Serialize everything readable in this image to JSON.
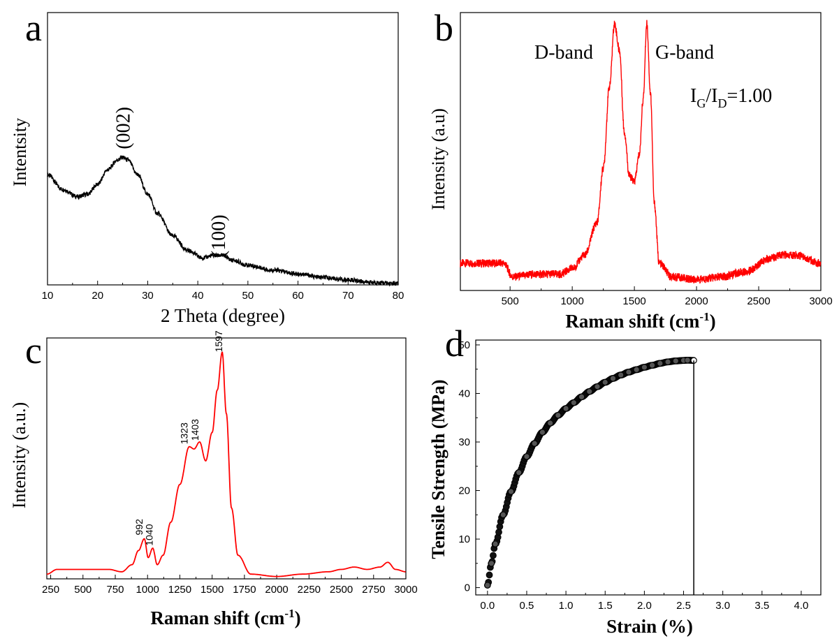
{
  "chart_data": [
    {
      "panel": "a",
      "type": "line",
      "xlabel": "2 Theta (degree)",
      "ylabel": "Intentsity",
      "xlim": [
        10,
        80
      ],
      "ylim": [
        0,
        1
      ],
      "xticks": [
        10,
        20,
        30,
        40,
        50,
        60,
        70,
        80
      ],
      "yticks_shown": false,
      "color": "#000000",
      "annotations": [
        {
          "text": "(002)",
          "x": 25,
          "y": 0.64
        },
        {
          "text": "(100)",
          "x": 44,
          "y": 0.2
        }
      ],
      "series": [
        {
          "x": [
            10,
            13,
            16,
            18,
            20,
            22,
            24,
            25,
            26,
            28,
            30,
            32,
            35,
            38,
            41,
            43,
            45,
            47,
            50,
            55,
            60,
            65,
            70,
            75,
            80
          ],
          "values": [
            0.45,
            0.39,
            0.36,
            0.37,
            0.41,
            0.47,
            0.51,
            0.52,
            0.51,
            0.45,
            0.37,
            0.29,
            0.2,
            0.14,
            0.11,
            0.12,
            0.12,
            0.1,
            0.08,
            0.06,
            0.045,
            0.03,
            0.02,
            0.01,
            0.005
          ]
        }
      ]
    },
    {
      "panel": "b",
      "type": "line",
      "xlabel": "Raman shift (cm",
      "xlabel_sup": "-1",
      "xlabel_end": ")",
      "ylabel": "Intensity (a.u)",
      "xlim": [
        100,
        3000
      ],
      "ylim": [
        0,
        1
      ],
      "xticks": [
        500,
        1000,
        1500,
        2000,
        2500,
        3000
      ],
      "yticks_shown": false,
      "color": "#ff0000",
      "annotations": [
        {
          "text": "D-band",
          "x": 1180,
          "y": 0.97
        },
        {
          "text": "G-band",
          "x": 1740,
          "y": 0.97
        }
      ],
      "ratio_label": {
        "main1": "I",
        "sub1": "G",
        "sep": "/I",
        "sub2": "D",
        "value": "=1.00"
      },
      "series": [
        {
          "x": [
            100,
            300,
            450,
            520,
            700,
            900,
            1000,
            1100,
            1200,
            1250,
            1300,
            1340,
            1380,
            1420,
            1460,
            1500,
            1540,
            1570,
            1600,
            1630,
            1660,
            1700,
            1800,
            2000,
            2200,
            2400,
            2600,
            2700,
            2800,
            3000
          ],
          "values": [
            0.1,
            0.1,
            0.1,
            0.05,
            0.06,
            0.06,
            0.08,
            0.13,
            0.25,
            0.45,
            0.75,
            0.98,
            0.88,
            0.58,
            0.42,
            0.4,
            0.5,
            0.7,
            0.98,
            0.72,
            0.32,
            0.1,
            0.05,
            0.04,
            0.05,
            0.07,
            0.12,
            0.13,
            0.13,
            0.1
          ]
        }
      ]
    },
    {
      "panel": "c",
      "type": "line",
      "xlabel": "Raman shift (cm",
      "xlabel_sup": "-1",
      "xlabel_end": ")",
      "ylabel": "Intensity (a.u.)",
      "xlim": [
        220,
        3000
      ],
      "ylim": [
        0,
        1
      ],
      "xticks": [
        250,
        500,
        750,
        1000,
        1250,
        1500,
        1750,
        2000,
        2250,
        2500,
        2750,
        3000
      ],
      "yticks_shown": false,
      "color": "#ff0000",
      "peak_labels": [
        {
          "text": "992",
          "x": 960,
          "y": 0.185
        },
        {
          "text": "1040",
          "x": 1040,
          "y": 0.14
        },
        {
          "text": "1323",
          "x": 1310,
          "y": 0.57
        },
        {
          "text": "1403",
          "x": 1395,
          "y": 0.585
        },
        {
          "text": "1597",
          "x": 1578,
          "y": 0.96
        }
      ],
      "series": [
        {
          "x": [
            220,
            300,
            400,
            500,
            600,
            700,
            800,
            880,
            930,
            975,
            1005,
            1040,
            1075,
            1120,
            1180,
            1250,
            1323,
            1360,
            1403,
            1450,
            1500,
            1540,
            1578,
            1610,
            1650,
            1700,
            1800,
            2000,
            2200,
            2400,
            2500,
            2600,
            2700,
            2800,
            2860,
            2920,
            3000
          ],
          "values": [
            0.02,
            0.04,
            0.04,
            0.04,
            0.04,
            0.04,
            0.03,
            0.06,
            0.12,
            0.17,
            0.09,
            0.13,
            0.06,
            0.1,
            0.24,
            0.4,
            0.56,
            0.55,
            0.58,
            0.5,
            0.62,
            0.8,
            0.96,
            0.7,
            0.3,
            0.1,
            0.02,
            0.01,
            0.02,
            0.03,
            0.04,
            0.05,
            0.04,
            0.05,
            0.07,
            0.04,
            0.03
          ]
        }
      ]
    },
    {
      "panel": "d",
      "type": "scatter",
      "xlabel": "Strain (%)",
      "ylabel": "Tensile Strength (MPa)",
      "xlim": [
        -0.15,
        4.25
      ],
      "ylim": [
        -1.5,
        51
      ],
      "xticks": [
        0.0,
        0.5,
        1.0,
        1.5,
        2.0,
        2.5,
        3.0,
        3.5,
        4.0
      ],
      "xtick_labels": [
        "0.0",
        "0.5",
        "1.0",
        "1.5",
        "2.0",
        "2.5",
        "3.0",
        "3.5",
        "4.0"
      ],
      "yticks": [
        0,
        10,
        20,
        30,
        40,
        50
      ],
      "color": "#000000",
      "fracture_strain": 2.63,
      "series": [
        {
          "x": [
            0.0,
            0.05,
            0.1,
            0.2,
            0.3,
            0.4,
            0.5,
            0.6,
            0.7,
            0.8,
            0.9,
            1.0,
            1.1,
            1.2,
            1.3,
            1.4,
            1.5,
            1.6,
            1.7,
            1.8,
            1.9,
            2.0,
            2.1,
            2.2,
            2.3,
            2.4,
            2.5,
            2.55,
            2.63
          ],
          "values": [
            0.5,
            5.0,
            9.0,
            15.0,
            19.8,
            23.7,
            27.0,
            29.7,
            32.0,
            33.9,
            35.5,
            36.9,
            38.1,
            39.3,
            40.4,
            41.4,
            42.3,
            43.1,
            43.8,
            44.4,
            44.9,
            45.4,
            45.8,
            46.2,
            46.5,
            46.7,
            46.8,
            46.85,
            46.8
          ]
        }
      ]
    }
  ]
}
